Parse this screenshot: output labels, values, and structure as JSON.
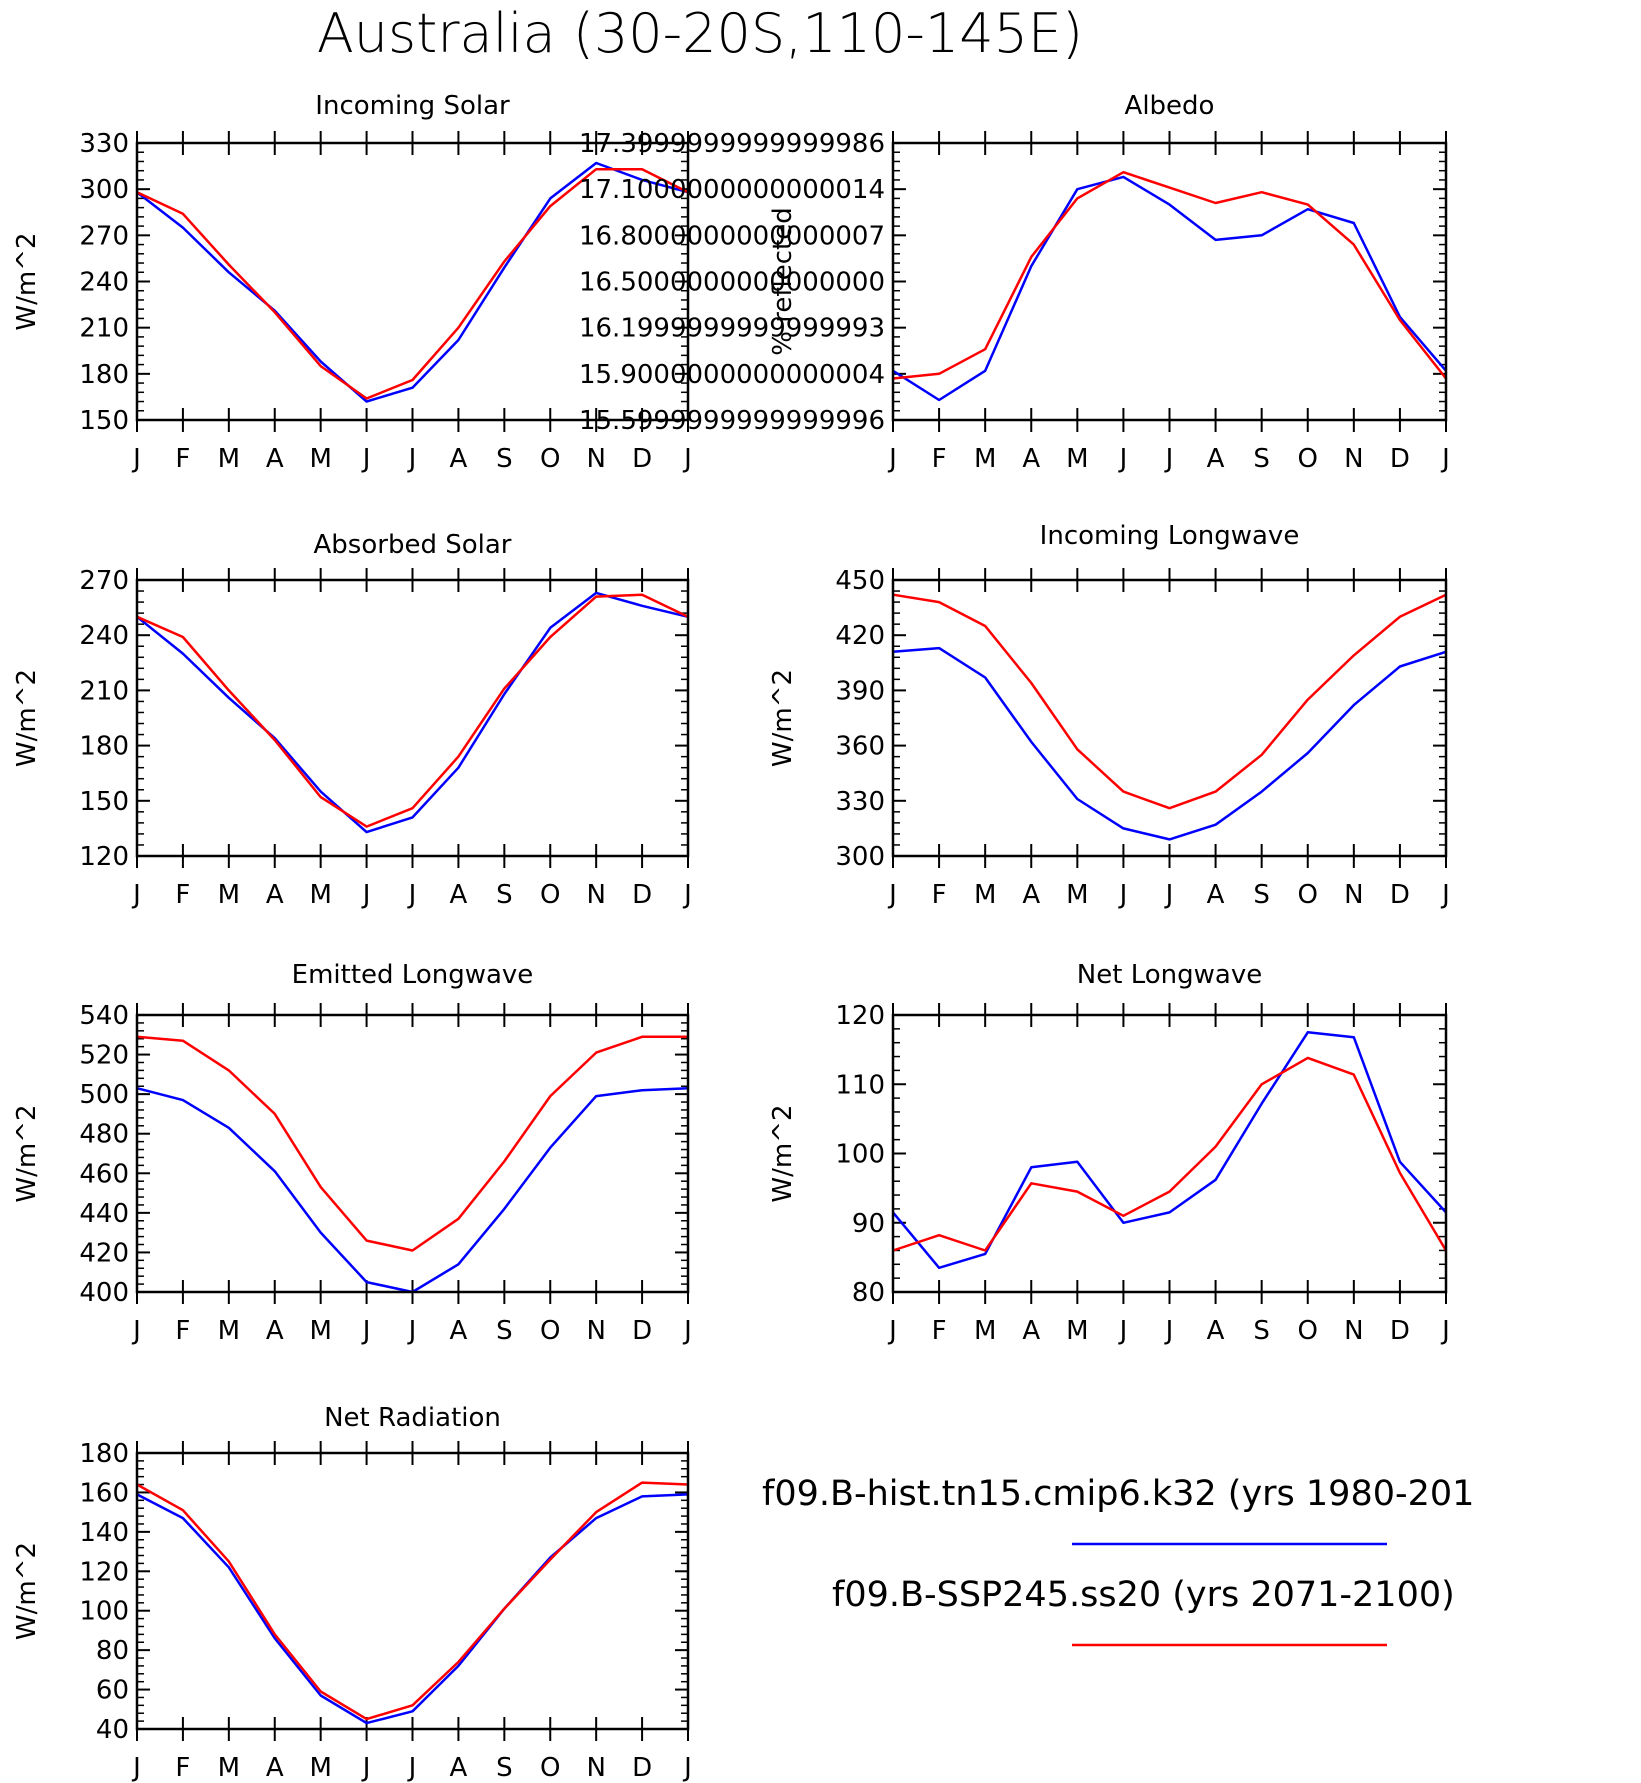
{
  "figure_title": "Australia (30-20S,110-145E)",
  "legend": [
    {
      "label": "f09.B-hist.tn15.cmip6.k32 (yrs 1980-201",
      "color": "#0000ff"
    },
    {
      "label": "f09.B-SSP245.ss20 (yrs 2071-2100)",
      "color": "#ff0000"
    }
  ],
  "chart_data": [
    {
      "type": "line",
      "title": "Incoming Solar",
      "ylabel": "W/m^2",
      "x": [
        "J",
        "F",
        "M",
        "A",
        "M",
        "J",
        "J",
        "A",
        "S",
        "O",
        "N",
        "D",
        "J"
      ],
      "ylim": [
        150,
        330
      ],
      "yticks": [
        150,
        180,
        210,
        240,
        270,
        300,
        330
      ],
      "series": [
        {
          "color": "#0000ff",
          "values": [
            298,
            275,
            246,
            221,
            188,
            162,
            171,
            202,
            249,
            294,
            317,
            306,
            298
          ]
        },
        {
          "color": "#ff0000",
          "values": [
            298,
            284,
            251,
            220,
            185,
            164,
            176,
            210,
            253,
            289,
            313,
            313,
            298
          ]
        }
      ]
    },
    {
      "type": "line",
      "title": "Albedo",
      "ylabel": "% reflected",
      "x": [
        "J",
        "F",
        "M",
        "A",
        "M",
        "J",
        "J",
        "A",
        "S",
        "O",
        "N",
        "D",
        "J"
      ],
      "ylim": [
        15.6,
        17.4
      ],
      "yticks": [
        15.6,
        15.9,
        16.2,
        16.5,
        16.8,
        17.1,
        17.4
      ],
      "series": [
        {
          "color": "#0000ff",
          "values": [
            15.92,
            15.73,
            15.92,
            16.6,
            17.1,
            17.18,
            17.0,
            16.77,
            16.8,
            16.97,
            16.88,
            16.27,
            15.92
          ]
        },
        {
          "color": "#ff0000",
          "values": [
            15.87,
            15.9,
            16.06,
            16.66,
            17.04,
            17.21,
            17.11,
            17.01,
            17.08,
            17.0,
            16.74,
            16.25,
            15.87
          ]
        }
      ]
    },
    {
      "type": "line",
      "title": "Absorbed Solar",
      "ylabel": "W/m^2",
      "x": [
        "J",
        "F",
        "M",
        "A",
        "M",
        "J",
        "J",
        "A",
        "S",
        "O",
        "N",
        "D",
        "J"
      ],
      "ylim": [
        120,
        270
      ],
      "yticks": [
        120,
        150,
        180,
        210,
        240,
        270
      ],
      "series": [
        {
          "color": "#0000ff",
          "values": [
            250,
            230,
            206,
            184,
            155,
            133,
            141,
            168,
            208,
            244,
            263,
            256,
            250
          ]
        },
        {
          "color": "#ff0000",
          "values": [
            250,
            239,
            210,
            183,
            152,
            136,
            146,
            174,
            211,
            239,
            261,
            262,
            250
          ]
        }
      ]
    },
    {
      "type": "line",
      "title": "Incoming Longwave",
      "ylabel": "W/m^2",
      "x": [
        "J",
        "F",
        "M",
        "A",
        "M",
        "J",
        "J",
        "A",
        "S",
        "O",
        "N",
        "D",
        "J"
      ],
      "ylim": [
        300,
        450
      ],
      "yticks": [
        300,
        330,
        360,
        390,
        420,
        450
      ],
      "series": [
        {
          "color": "#0000ff",
          "values": [
            411,
            413,
            397,
            362,
            331,
            315,
            309,
            317,
            335,
            356,
            382,
            403,
            411
          ]
        },
        {
          "color": "#ff0000",
          "values": [
            442,
            438,
            425,
            394,
            358,
            335,
            326,
            335,
            355,
            385,
            409,
            430,
            442
          ]
        }
      ]
    },
    {
      "type": "line",
      "title": "Emitted Longwave",
      "ylabel": "W/m^2",
      "x": [
        "J",
        "F",
        "M",
        "A",
        "M",
        "J",
        "J",
        "A",
        "S",
        "O",
        "N",
        "D",
        "J"
      ],
      "ylim": [
        400,
        540
      ],
      "yticks": [
        400,
        420,
        440,
        460,
        480,
        500,
        520,
        540
      ],
      "series": [
        {
          "color": "#0000ff",
          "values": [
            503,
            497,
            483,
            461,
            430,
            405,
            400,
            414,
            442,
            473,
            499,
            502,
            503
          ]
        },
        {
          "color": "#ff0000",
          "values": [
            529,
            527,
            512,
            490,
            453,
            426,
            421,
            437,
            466,
            499,
            521,
            529,
            529
          ]
        }
      ]
    },
    {
      "type": "line",
      "title": "Net Longwave",
      "ylabel": "W/m^2",
      "x": [
        "J",
        "F",
        "M",
        "A",
        "M",
        "J",
        "J",
        "A",
        "S",
        "O",
        "N",
        "D",
        "J"
      ],
      "ylim": [
        80,
        120
      ],
      "yticks": [
        80,
        90,
        100,
        110,
        120
      ],
      "series": [
        {
          "color": "#0000ff",
          "values": [
            91.5,
            83.5,
            85.5,
            98,
            98.8,
            90,
            91.5,
            96.2,
            107.2,
            117.5,
            116.8,
            98.8,
            91.5
          ]
        },
        {
          "color": "#ff0000",
          "values": [
            86,
            88.2,
            86,
            95.7,
            94.5,
            91,
            94.5,
            101,
            110,
            113.8,
            111.4,
            97.2,
            86
          ]
        }
      ]
    },
    {
      "type": "line",
      "title": "Net Radiation",
      "ylabel": "W/m^2",
      "x": [
        "J",
        "F",
        "M",
        "A",
        "M",
        "J",
        "J",
        "A",
        "S",
        "O",
        "N",
        "D",
        "J"
      ],
      "ylim": [
        40,
        180
      ],
      "yticks": [
        40,
        60,
        80,
        100,
        120,
        140,
        160,
        180
      ],
      "series": [
        {
          "color": "#0000ff",
          "values": [
            159,
            147,
            122,
            86,
            57,
            43,
            49,
            72,
            101,
            127,
            147,
            158,
            159
          ]
        },
        {
          "color": "#ff0000",
          "values": [
            164,
            151,
            125,
            88,
            59,
            45,
            52,
            74,
            101,
            126,
            150,
            165,
            164
          ]
        }
      ]
    }
  ]
}
